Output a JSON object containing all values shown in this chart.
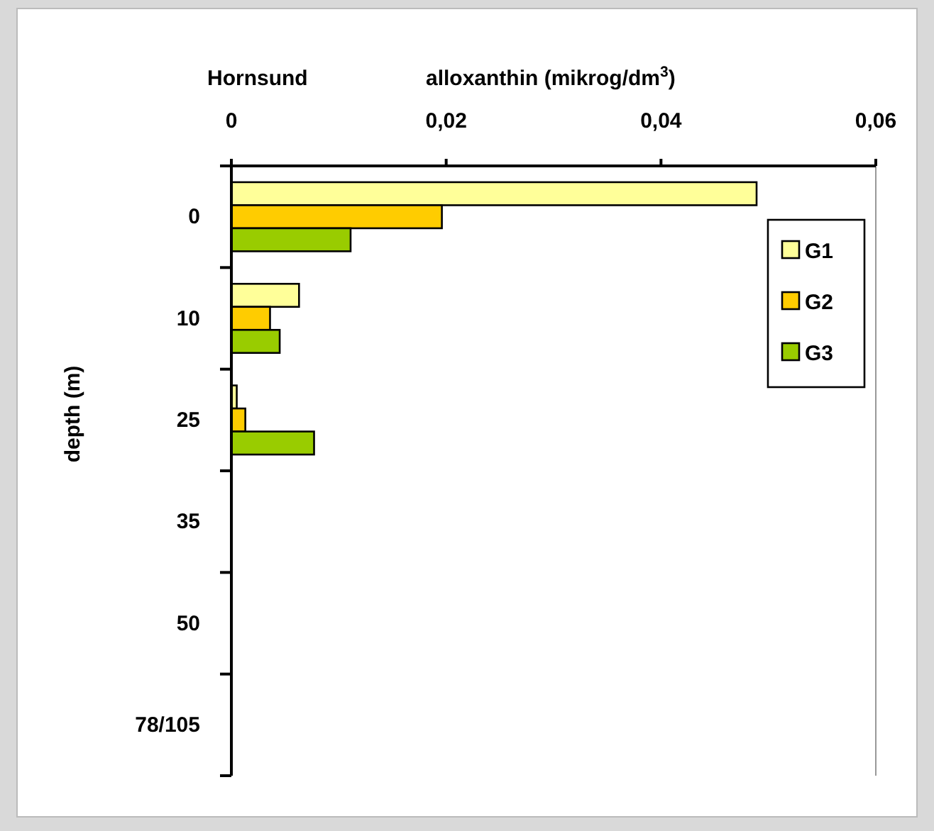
{
  "chart_data": {
    "type": "bar",
    "orientation": "horizontal",
    "title": "Hornsund",
    "xlabel": "alloxanthin (mikrog/dm$^{3}$)",
    "ylabel": "depth (m)",
    "categories": [
      "0",
      "10",
      "25",
      "35",
      "50",
      "78/105"
    ],
    "series": [
      {
        "name": "G1",
        "color": "#ffff99",
        "values": [
          0.0489,
          0.0063,
          0.0005,
          null,
          null,
          null
        ]
      },
      {
        "name": "G2",
        "color": "#ffcc00",
        "values": [
          0.0196,
          0.0036,
          0.0013,
          null,
          null,
          null
        ]
      },
      {
        "name": "G3",
        "color": "#99cc00",
        "values": [
          0.0111,
          0.0045,
          0.0077,
          null,
          null,
          null
        ]
      }
    ],
    "xlim": [
      0,
      0.06
    ],
    "xticks": [
      0,
      {
        "value": 0.02,
        "label": "0,02"
      },
      {
        "value": 0.04,
        "label": "0,04"
      },
      {
        "value": 0.06,
        "label": "0,06"
      }
    ],
    "grid": false,
    "legend": "top right"
  }
}
